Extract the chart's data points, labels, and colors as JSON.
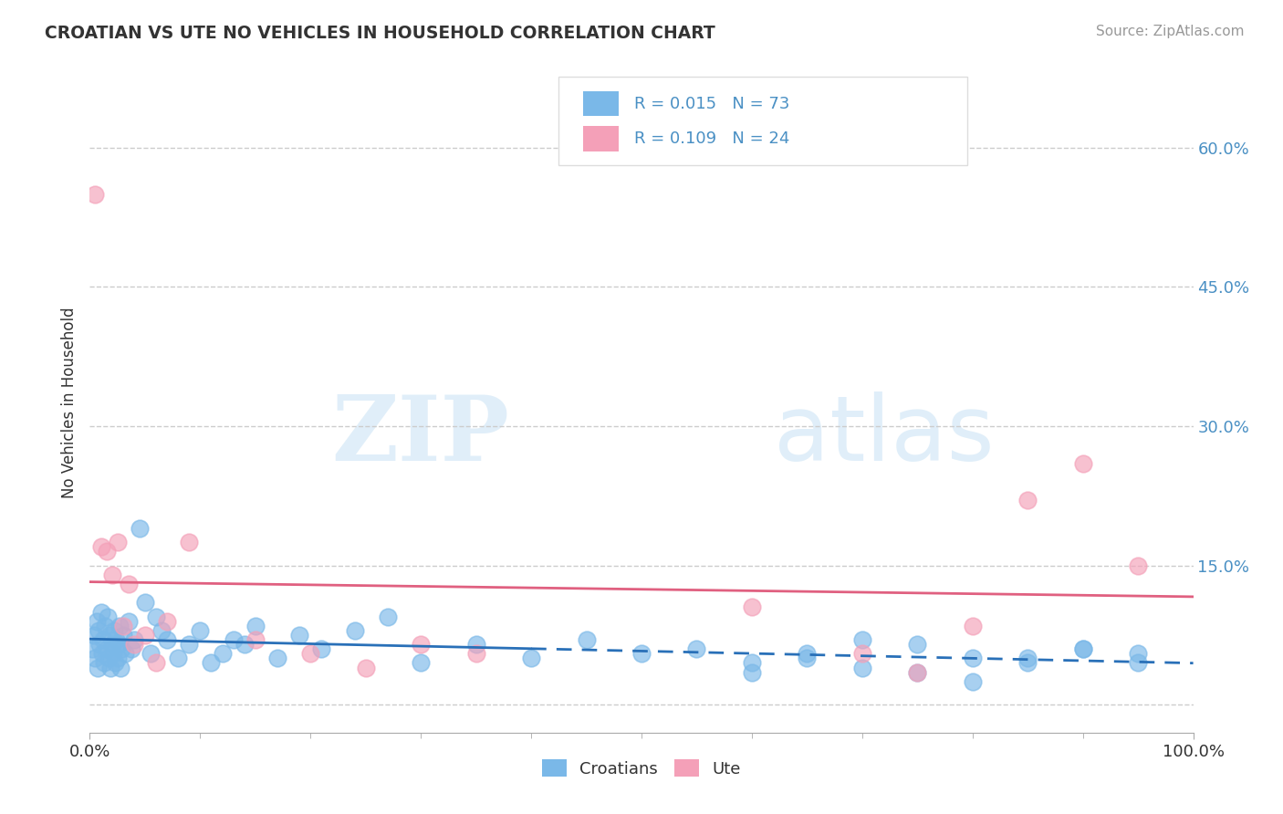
{
  "title": "CROATIAN VS UTE NO VEHICLES IN HOUSEHOLD CORRELATION CHART",
  "source_text": "Source: ZipAtlas.com",
  "ylabel": "No Vehicles in Household",
  "xlim": [
    0.0,
    100.0
  ],
  "ylim": [
    -3.0,
    68.0
  ],
  "yticks": [
    0,
    15,
    30,
    45,
    60
  ],
  "ytick_labels": [
    "",
    "15.0%",
    "30.0%",
    "45.0%",
    "60.0%"
  ],
  "xticks": [
    0,
    100
  ],
  "xtick_labels": [
    "0.0%",
    "100.0%"
  ],
  "croatian_color": "#7ab8e8",
  "ute_color": "#f4a0b8",
  "croatian_R": 0.015,
  "croatian_N": 73,
  "ute_R": 0.109,
  "ute_N": 24,
  "legend_label1": "Croatians",
  "legend_label2": "Ute",
  "watermark_zip": "ZIP",
  "watermark_atlas": "atlas",
  "background_color": "#ffffff",
  "croatian_x": [
    0.2,
    0.4,
    0.5,
    0.6,
    0.7,
    0.8,
    0.9,
    1.0,
    1.1,
    1.2,
    1.3,
    1.4,
    1.5,
    1.6,
    1.7,
    1.8,
    1.9,
    2.0,
    2.1,
    2.2,
    2.3,
    2.4,
    2.5,
    2.6,
    2.7,
    2.8,
    2.9,
    3.0,
    3.2,
    3.5,
    3.8,
    4.0,
    4.5,
    5.0,
    5.5,
    6.0,
    6.5,
    7.0,
    8.0,
    9.0,
    10.0,
    11.0,
    12.0,
    13.0,
    14.0,
    15.0,
    17.0,
    19.0,
    21.0,
    24.0,
    27.0,
    30.0,
    35.0,
    40.0,
    45.0,
    50.0,
    55.0,
    60.0,
    65.0,
    70.0,
    75.0,
    80.0,
    85.0,
    90.0,
    95.0,
    65.0,
    70.0,
    75.0,
    80.0,
    85.0,
    90.0,
    95.0,
    60.0
  ],
  "croatian_y": [
    6.0,
    7.5,
    5.0,
    9.0,
    4.0,
    8.0,
    6.5,
    10.0,
    5.5,
    7.0,
    4.5,
    8.5,
    6.0,
    9.5,
    5.0,
    7.5,
    4.0,
    6.5,
    5.5,
    8.0,
    4.5,
    7.0,
    5.0,
    6.5,
    8.5,
    4.0,
    6.0,
    7.5,
    5.5,
    9.0,
    6.0,
    7.0,
    19.0,
    11.0,
    5.5,
    9.5,
    8.0,
    7.0,
    5.0,
    6.5,
    8.0,
    4.5,
    5.5,
    7.0,
    6.5,
    8.5,
    5.0,
    7.5,
    6.0,
    8.0,
    9.5,
    4.5,
    6.5,
    5.0,
    7.0,
    5.5,
    6.0,
    4.5,
    5.5,
    7.0,
    6.5,
    5.0,
    4.5,
    6.0,
    5.5,
    5.0,
    4.0,
    3.5,
    2.5,
    5.0,
    6.0,
    4.5,
    3.5
  ],
  "ute_x": [
    0.5,
    1.0,
    1.5,
    2.0,
    2.5,
    3.0,
    3.5,
    4.0,
    5.0,
    6.0,
    7.0,
    9.0,
    60.0,
    70.0,
    75.0,
    80.0,
    85.0,
    90.0,
    95.0,
    15.0,
    20.0,
    25.0,
    30.0,
    35.0
  ],
  "ute_y": [
    55.0,
    17.0,
    16.5,
    14.0,
    17.5,
    8.5,
    13.0,
    6.5,
    7.5,
    4.5,
    9.0,
    17.5,
    10.5,
    5.5,
    3.5,
    8.5,
    22.0,
    26.0,
    15.0,
    7.0,
    5.5,
    4.0,
    6.5,
    5.5
  ],
  "trend_blue_xstart": 0.0,
  "trend_blue_xend": 40.0,
  "trend_blue_xdash_start": 40.0,
  "trend_blue_xdash_end": 100.0,
  "trend_pink_xstart": 0.0,
  "trend_pink_xend": 100.0
}
